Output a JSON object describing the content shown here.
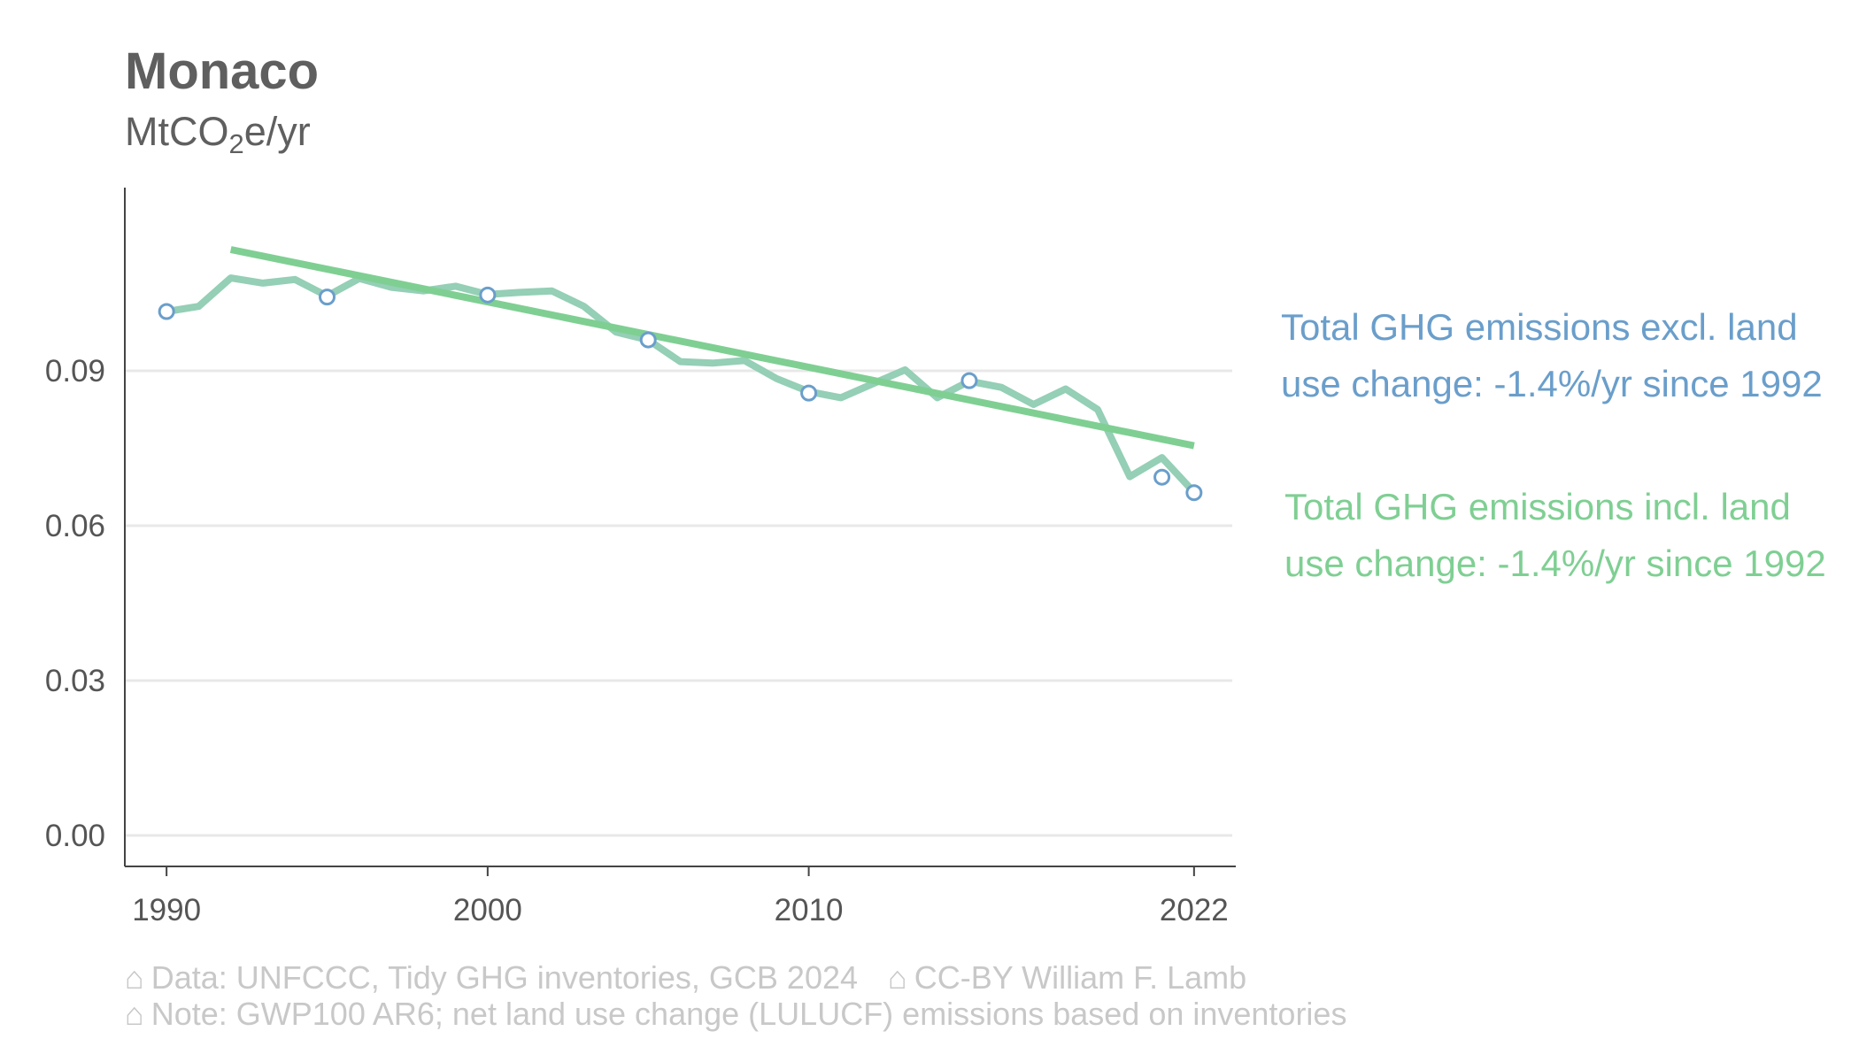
{
  "title": "Monaco",
  "unit": {
    "pre": "MtCO",
    "sub": "2",
    "post": "e/yr"
  },
  "labels": {
    "excl": "Total GHG emissions excl. land use change: -1.4%/yr since 1992",
    "incl": "Total GHG emissions incl. land use change: -1.4%/yr since 1992"
  },
  "footer": {
    "icon": "house-icon",
    "line1_a": "Data: UNFCCC, Tidy GHG inventories, GCB 2024",
    "line1_b": "CC-BY William F. Lamb",
    "line2": "Note: GWP100 AR6; net land use change (LULUCF) emissions based on inventories"
  },
  "colors": {
    "excl": "#6a9ecb",
    "incl": "#7fcf93",
    "incl_series": "#94cfb6",
    "grid": "#e8e8e8",
    "axis": "#444444",
    "tick_text": "#555555"
  },
  "chart_data": {
    "type": "line",
    "xlim": [
      1988.7,
      2023.3
    ],
    "ylim": [
      -0.006,
      0.1255
    ],
    "yticks": [
      0,
      0.03,
      0.06,
      0.09
    ],
    "ytick_labels": [
      "0.00",
      "0.03",
      "0.06",
      "0.09"
    ],
    "xticks": [
      1990,
      2000,
      2010,
      2022
    ],
    "xtick_labels": [
      "1990",
      "2000",
      "2010",
      "2022"
    ],
    "grid": "horizontal",
    "series": [
      {
        "name": "Total GHG emissions incl. land use change",
        "x": [
          1990,
          1991,
          1992,
          1993,
          1994,
          1995,
          1996,
          1997,
          1998,
          1999,
          2000,
          2001,
          2002,
          2003,
          2004,
          2005,
          2006,
          2007,
          2008,
          2009,
          2010,
          2011,
          2012,
          2013,
          2014,
          2015,
          2016,
          2017,
          2018,
          2019,
          2020,
          2021,
          2022
        ],
        "y": [
          0.1015,
          0.1025,
          0.108,
          0.107,
          0.1077,
          0.1045,
          0.1079,
          0.1062,
          0.1055,
          0.1064,
          0.1048,
          0.1052,
          0.1055,
          0.1025,
          0.0975,
          0.096,
          0.0918,
          0.0915,
          0.092,
          0.0885,
          0.086,
          0.0848,
          0.0875,
          0.0902,
          0.0848,
          0.088,
          0.0868,
          0.0835,
          0.0865,
          0.0825,
          0.0695,
          0.0732,
          0.0665
        ]
      },
      {
        "name": "Total GHG emissions excl. land use change",
        "x": [
          1990,
          1995,
          2000,
          2005,
          2010,
          2015,
          2021,
          2022
        ],
        "y": [
          0.1015,
          0.1043,
          0.1047,
          0.096,
          0.0857,
          0.0881,
          0.0694,
          0.0664
        ]
      },
      {
        "name": "Trend: -1.4%/yr since 1992",
        "x": [
          1992,
          2022
        ],
        "y": [
          0.1135,
          0.0755
        ]
      }
    ]
  }
}
